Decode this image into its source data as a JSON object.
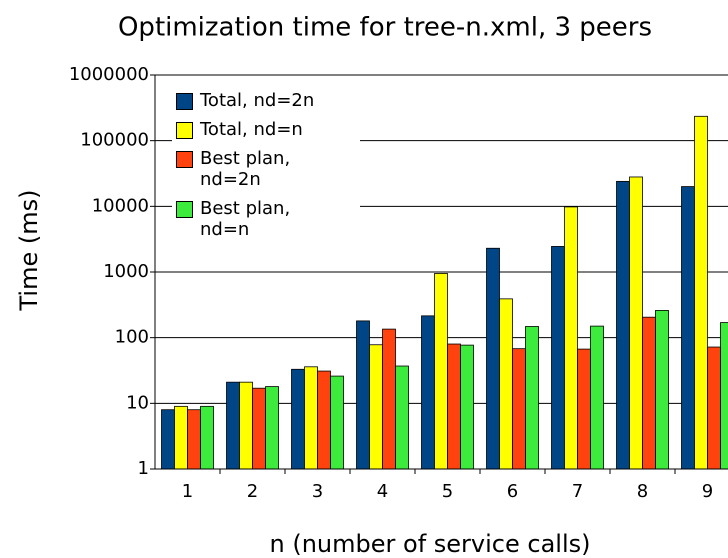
{
  "chart_data": {
    "type": "bar",
    "title": "Optimization time for tree-n.xml, 3 peers",
    "x_label": "n (number of service calls)",
    "y_label": "Time (ms)",
    "categories": [
      "1",
      "2",
      "3",
      "4",
      "5",
      "6",
      "7",
      "8",
      "9"
    ],
    "series": [
      {
        "name": "Total, nd=2n",
        "color": "#004586",
        "values": [
          8,
          21,
          33,
          180,
          215,
          2300,
          2450,
          24000,
          20000
        ]
      },
      {
        "name": "Total, nd=n",
        "color": "#ffff00",
        "values": [
          9,
          21,
          36,
          78,
          950,
          390,
          9800,
          28000,
          235000
        ]
      },
      {
        "name": "Best plan, nd=2n",
        "color": "#ff420e",
        "values": [
          8,
          17,
          31,
          135,
          80,
          68,
          67,
          205,
          72
        ]
      },
      {
        "name": "Best plan, nd=n",
        "color": "#3deb3d",
        "values": [
          9,
          18,
          26,
          37,
          77,
          148,
          150,
          260,
          170
        ]
      }
    ],
    "log_scale": true,
    "ylim": [
      1,
      1000000
    ],
    "yticks": [
      1,
      10,
      100,
      1000,
      10000,
      100000,
      1000000
    ],
    "grid": true,
    "legend": "upper left"
  }
}
